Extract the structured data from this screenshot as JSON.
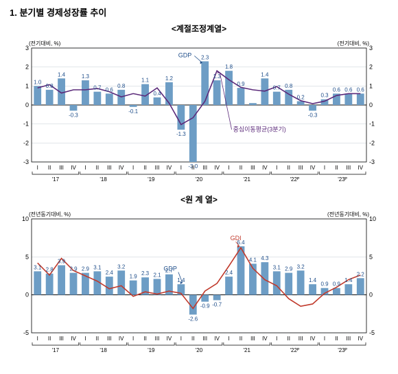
{
  "section_heading": "1. 분기별 경제성장률 추이",
  "common": {
    "x_categories": [
      "I",
      "II",
      "III",
      "IV",
      "I",
      "II",
      "III",
      "IV",
      "I",
      "II",
      "III",
      "IV",
      "I",
      "II",
      "III",
      "IV",
      "I",
      "II",
      "III",
      "IV",
      "I",
      "II",
      "III",
      "IV",
      "I",
      "II",
      "III",
      "IV"
    ],
    "year_labels": [
      "'17",
      "'18",
      "'19",
      "'20",
      "'21",
      "'22ᴾ",
      "'23ᴾ"
    ],
    "bar_color": "#6d9dc5",
    "line_color_purple": "#5b2a7a",
    "line_color_red": "#c0392b",
    "text_color": "#1f4e8a",
    "axis_color": "#000000",
    "grid_color": "#cfd6dc",
    "background": "#ffffff",
    "label_fontsize": 8,
    "axis_fontsize": 9,
    "title_fontsize": 12
  },
  "chart1": {
    "title": "<계절조정계열>",
    "y_label_left": "(전기대비, %)",
    "y_label_right": "(전기대비, %)",
    "ylim": [
      -3,
      3
    ],
    "ytick_step": 1,
    "gdp_label": "GDP",
    "ma_label": "중심이동평균(3분기)",
    "bars": [
      1.0,
      0.8,
      1.4,
      -0.3,
      1.3,
      0.7,
      0.6,
      0.8,
      -0.1,
      1.1,
      0.4,
      1.2,
      -1.3,
      -3.0,
      2.3,
      1.3,
      1.8,
      0.9,
      0.1,
      1.4,
      0.7,
      0.8,
      0.2,
      -0.3,
      0.3,
      0.6,
      0.6,
      0.6
    ],
    "ma_line": [
      0.9,
      1.07,
      0.63,
      0.8,
      0.8,
      0.87,
      0.7,
      0.43,
      0.6,
      0.47,
      0.9,
      0.1,
      -1.03,
      -0.67,
      0.2,
      1.8,
      1.33,
      0.93,
      0.8,
      0.73,
      0.97,
      0.57,
      0.23,
      0.07,
      0.2,
      0.5,
      0.6,
      0.6
    ],
    "highlight_labels": [
      {
        "i": 0,
        "v": "1.0"
      },
      {
        "i": 1,
        "v": "0.8"
      },
      {
        "i": 2,
        "v": "1.4"
      },
      {
        "i": 3,
        "v": "-0.3"
      },
      {
        "i": 4,
        "v": "1.3"
      },
      {
        "i": 5,
        "v": "0.7"
      },
      {
        "i": 6,
        "v": "0.6"
      },
      {
        "i": 7,
        "v": "0.8"
      },
      {
        "i": 8,
        "v": "-0.1"
      },
      {
        "i": 9,
        "v": "1.1"
      },
      {
        "i": 10,
        "v": "0.4"
      },
      {
        "i": 11,
        "v": "1.2"
      },
      {
        "i": 12,
        "v": "-1.3"
      },
      {
        "i": 13,
        "v": "-3.0"
      },
      {
        "i": 14,
        "v": "2.3"
      },
      {
        "i": 15,
        "v": "1.3"
      },
      {
        "i": 16,
        "v": "1.8"
      },
      {
        "i": 17,
        "v": "0.9"
      },
      {
        "i": 19,
        "v": "1.4"
      },
      {
        "i": 20,
        "v": "0.7"
      },
      {
        "i": 21,
        "v": "0.8"
      },
      {
        "i": 22,
        "v": "0.2"
      },
      {
        "i": 23,
        "v": "-0.3"
      },
      {
        "i": 24,
        "v": "0.3"
      },
      {
        "i": 25,
        "v": "0.6"
      },
      {
        "i": 26,
        "v": "0.6"
      },
      {
        "i": 27,
        "v": "0.6"
      }
    ]
  },
  "chart2": {
    "title": "<원 계 열>",
    "y_label_left": "(전년동기대비, %)",
    "y_label_right": "(전년동기대비, %)",
    "ylim": [
      -5,
      10
    ],
    "ytick_step": 5,
    "gdp_label": "GDP",
    "gdi_label": "GDI",
    "bars": [
      3.1,
      2.8,
      3.9,
      2.9,
      2.9,
      3.1,
      2.4,
      3.2,
      1.9,
      2.3,
      2.1,
      2.7,
      1.4,
      -2.6,
      -0.9,
      -0.7,
      2.4,
      6.4,
      4.1,
      4.3,
      3.1,
      2.9,
      3.2,
      1.4,
      0.9,
      0.9,
      1.4,
      2.2
    ],
    "gdi_line": [
      4.2,
      2.6,
      4.8,
      3.2,
      2.5,
      1.8,
      0.8,
      1.2,
      -0.2,
      0.4,
      0.1,
      0.5,
      0.2,
      -1.8,
      0.5,
      1.5,
      3.8,
      6.2,
      3.5,
      2.0,
      1.2,
      -0.5,
      -1.5,
      -1.2,
      0.2,
      1.0,
      2.0,
      2.6
    ],
    "highlight_labels": [
      {
        "i": 0,
        "v": "3.1"
      },
      {
        "i": 1,
        "v": "2.8"
      },
      {
        "i": 2,
        "v": "3.9"
      },
      {
        "i": 3,
        "v": "2.9"
      },
      {
        "i": 4,
        "v": "2.9"
      },
      {
        "i": 5,
        "v": "3.1"
      },
      {
        "i": 6,
        "v": "2.4"
      },
      {
        "i": 7,
        "v": "3.2"
      },
      {
        "i": 8,
        "v": "1.9"
      },
      {
        "i": 9,
        "v": "2.3"
      },
      {
        "i": 10,
        "v": "2.1"
      },
      {
        "i": 11,
        "v": "2.7"
      },
      {
        "i": 12,
        "v": "1.4"
      },
      {
        "i": 13,
        "v": "-2.6"
      },
      {
        "i": 14,
        "v": "-0.9"
      },
      {
        "i": 15,
        "v": "-0.7"
      },
      {
        "i": 16,
        "v": "2.4"
      },
      {
        "i": 17,
        "v": "6.4"
      },
      {
        "i": 18,
        "v": "4.1"
      },
      {
        "i": 19,
        "v": "4.3"
      },
      {
        "i": 20,
        "v": "3.1"
      },
      {
        "i": 21,
        "v": "2.9"
      },
      {
        "i": 22,
        "v": "3.2"
      },
      {
        "i": 23,
        "v": "1.4"
      },
      {
        "i": 24,
        "v": "0.9"
      },
      {
        "i": 25,
        "v": "0.9"
      },
      {
        "i": 26,
        "v": "1.4"
      },
      {
        "i": 27,
        "v": "2.2"
      }
    ]
  }
}
